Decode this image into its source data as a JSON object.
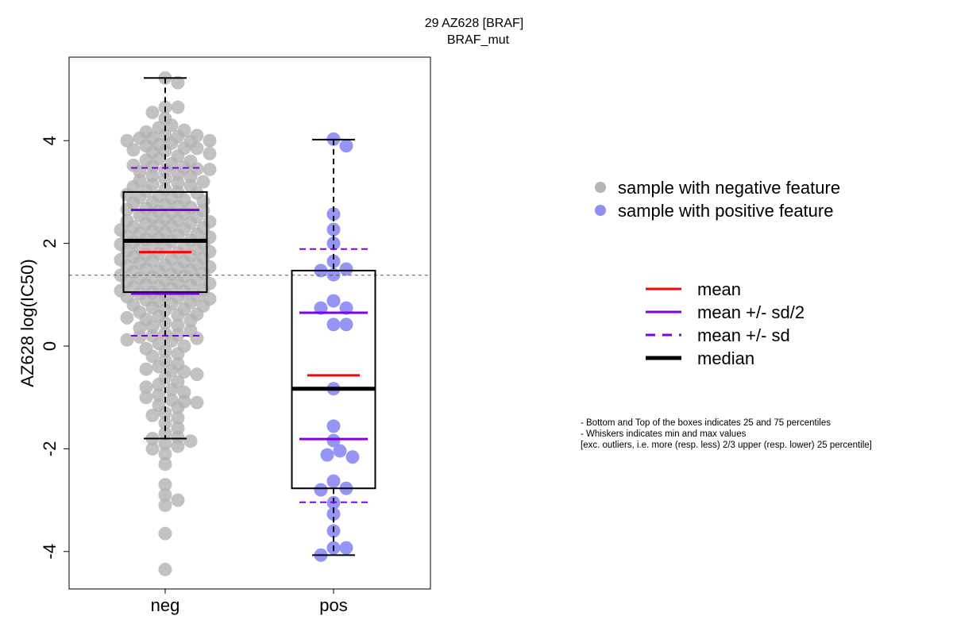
{
  "chart_data": {
    "type": "box-swarm",
    "title": "29 AZ628 [BRAF]",
    "subtitle": "BRAF_mut",
    "ylabel": "AZ628 log(IC50)",
    "xlabel": "",
    "ylim": [
      -4.75,
      5.65
    ],
    "yticks": [
      -4,
      -2,
      0,
      2,
      4
    ],
    "ytick_labels": [
      "-4",
      "-2",
      "0",
      "2",
      "4"
    ],
    "categories": [
      "neg",
      "pos"
    ],
    "reference_line": 1.38,
    "colors": {
      "neg": "#b3b3b3",
      "pos": "#8f8ff5",
      "mean": "#ff0000",
      "sd": "#8000e6",
      "median": "#000000",
      "box": "#000000"
    },
    "groups": [
      {
        "name": "neg",
        "box": {
          "q1": 1.05,
          "median": 2.05,
          "q3": 3.0,
          "whisker_low": -1.8,
          "whisker_high": 5.22
        },
        "mean": 1.83,
        "mean_minus_half_sd": 1.02,
        "mean_plus_half_sd": 2.65,
        "mean_minus_sd": 0.2,
        "mean_plus_sd": 3.47,
        "points": [
          5.22,
          5.13,
          4.65,
          4.55,
          4.43,
          4.65,
          4.2,
          4.3,
          4.1,
          4.25,
          4.17,
          4.05,
          4.08,
          4.0,
          3.95,
          4.1,
          4.05,
          3.9,
          3.85,
          3.98,
          4.0,
          3.92,
          3.8,
          3.82,
          3.85,
          3.78,
          3.7,
          3.75,
          3.65,
          3.6,
          3.62,
          3.55,
          3.5,
          3.48,
          3.45,
          3.52,
          3.44,
          3.4,
          3.42,
          3.35,
          3.3,
          3.32,
          3.25,
          3.2,
          3.22,
          3.18,
          3.15,
          3.1,
          3.12,
          3.05,
          3.02,
          3.0,
          2.98,
          2.95,
          2.9,
          2.92,
          2.88,
          2.85,
          2.82,
          2.8,
          2.78,
          2.75,
          2.72,
          2.7,
          2.68,
          2.66,
          2.64,
          2.62,
          2.6,
          2.58,
          2.55,
          2.52,
          2.5,
          2.48,
          2.46,
          2.44,
          2.42,
          2.4,
          2.38,
          2.36,
          2.34,
          2.32,
          2.3,
          2.28,
          2.26,
          2.24,
          2.22,
          2.2,
          2.18,
          2.16,
          2.14,
          2.12,
          2.1,
          2.08,
          2.06,
          2.04,
          2.02,
          2.0,
          1.98,
          1.96,
          1.94,
          1.92,
          1.9,
          1.88,
          1.86,
          1.84,
          1.82,
          1.8,
          1.78,
          1.76,
          1.74,
          1.72,
          1.7,
          1.68,
          1.66,
          1.64,
          1.62,
          1.6,
          1.58,
          1.56,
          1.54,
          1.52,
          1.5,
          1.48,
          1.46,
          1.44,
          1.42,
          1.4,
          1.38,
          1.36,
          1.34,
          1.32,
          1.3,
          1.28,
          1.26,
          1.24,
          1.22,
          1.2,
          1.18,
          1.16,
          1.14,
          1.12,
          1.1,
          1.08,
          1.06,
          1.04,
          1.02,
          1.0,
          0.98,
          0.96,
          0.94,
          0.92,
          0.9,
          0.88,
          0.85,
          0.82,
          0.8,
          0.78,
          0.75,
          0.72,
          0.7,
          0.66,
          0.62,
          0.6,
          0.58,
          0.55,
          0.52,
          0.5,
          0.45,
          0.4,
          0.38,
          0.35,
          0.3,
          0.25,
          0.22,
          0.2,
          0.18,
          0.15,
          0.12,
          0.1,
          0.05,
          0.0,
          -0.05,
          -0.1,
          -0.15,
          -0.2,
          -0.28,
          -0.35,
          -0.4,
          -0.45,
          -0.48,
          -0.5,
          -0.55,
          -0.62,
          -0.7,
          -0.75,
          -0.8,
          -0.85,
          -0.9,
          -0.95,
          -1.0,
          -1.05,
          -1.08,
          -1.1,
          -1.15,
          -1.2,
          -1.3,
          -1.35,
          -1.4,
          -1.5,
          -1.6,
          -1.7,
          -1.78,
          -1.8,
          -1.85,
          -1.9,
          -1.95,
          -2.0,
          -2.1,
          -2.3,
          -2.7,
          -2.9,
          -3.0,
          -3.1,
          -3.65,
          -4.35
        ],
        "point_count_note": ""
      },
      {
        "name": "pos",
        "box": {
          "q1": -2.77,
          "median": -0.83,
          "q3": 1.47,
          "whisker_low": -4.07,
          "whisker_high": 4.02
        },
        "mean": -0.57,
        "mean_minus_half_sd": -1.81,
        "mean_plus_half_sd": 0.65,
        "mean_minus_sd": -3.04,
        "mean_plus_sd": 1.89,
        "points": [
          4.03,
          3.9,
          2.57,
          2.27,
          2.0,
          1.65,
          1.5,
          1.47,
          1.39,
          0.88,
          0.74,
          0.74,
          0.42,
          0.42,
          -0.83,
          -1.56,
          -1.84,
          -2.04,
          -2.12,
          -2.16,
          -2.63,
          -2.8,
          -2.77,
          -3.05,
          -3.27,
          -3.6,
          -3.93,
          -3.93,
          -4.07
        ]
      }
    ],
    "legend_points": [
      {
        "label": "sample with negative feature",
        "color": "#b3b3b3"
      },
      {
        "label": "sample with positive feature",
        "color": "#8f8ff5"
      }
    ],
    "legend_lines": [
      {
        "label": "mean",
        "color": "#ff0000",
        "style": "solid",
        "weight": "normal"
      },
      {
        "label": "mean +/- sd/2",
        "color": "#8000e6",
        "style": "solid",
        "weight": "normal"
      },
      {
        "label": "mean +/- sd",
        "color": "#8000e6",
        "style": "dashed",
        "weight": "normal"
      },
      {
        "label": "median",
        "color": "#000000",
        "style": "solid",
        "weight": "bold"
      }
    ],
    "notes": [
      "- Bottom and Top of the boxes indicates 25 and 75 percentiles",
      "- Whiskers indicates min and max values",
      "[exc. outliers, i.e. more (resp. less) 2/3 upper (resp. lower) 25 percentile]"
    ]
  }
}
